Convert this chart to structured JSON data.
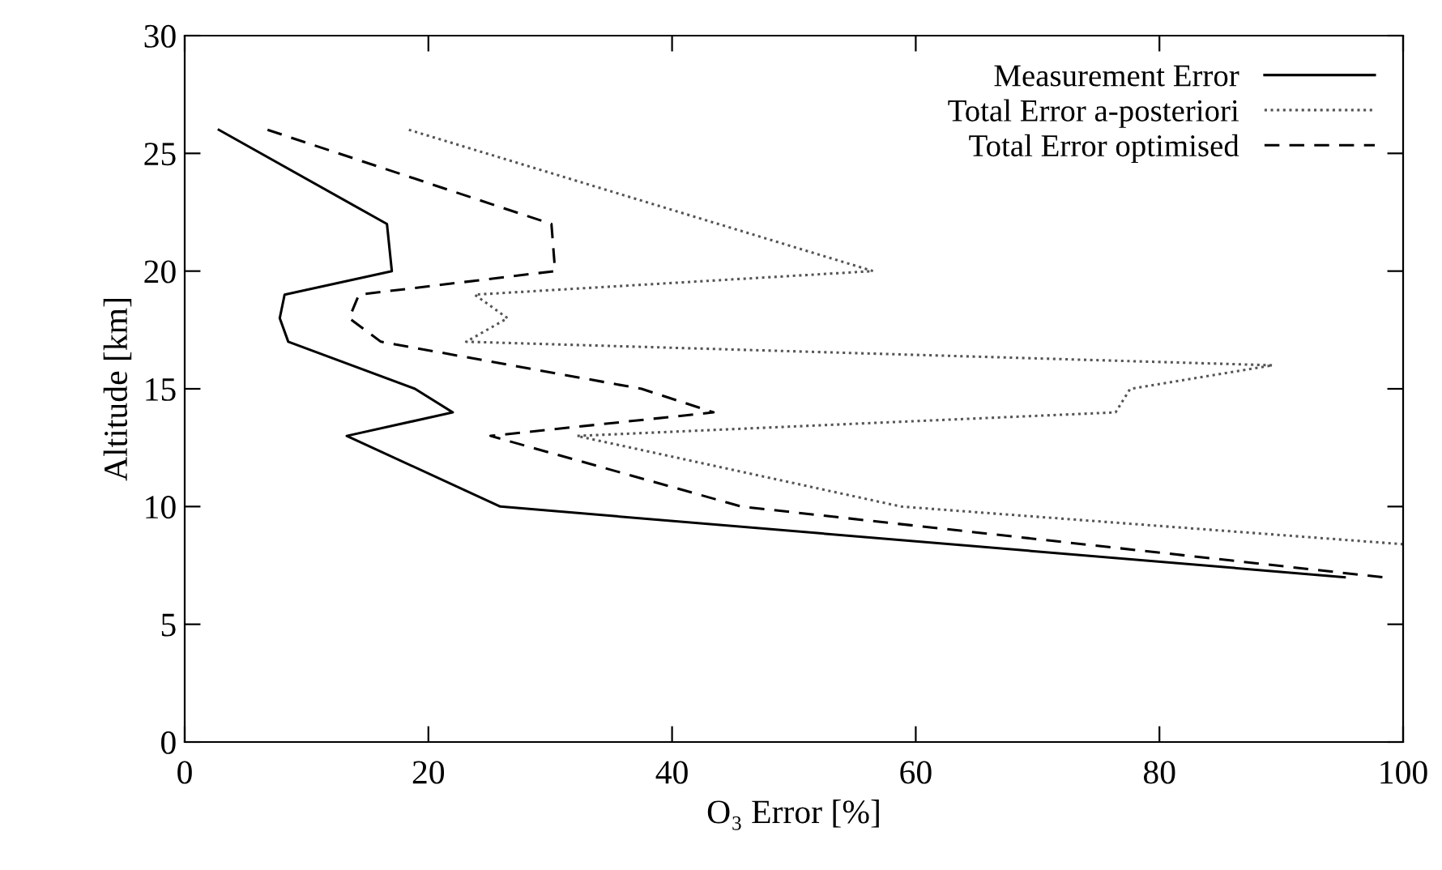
{
  "chart_data": {
    "type": "line",
    "xlabel": "O₃ Error [%]",
    "ylabel": "Altitude [km]",
    "xlim": [
      0,
      100
    ],
    "xticks": [
      0,
      20,
      40,
      60,
      80,
      100
    ],
    "ylim": [
      0,
      30
    ],
    "yticks": [
      0,
      5,
      10,
      15,
      20,
      25,
      30
    ],
    "grid": false,
    "legend": "top right",
    "marker": "none",
    "series": [
      {
        "name": "Measurement Error",
        "color": "#000000",
        "line_style": "solid",
        "x": [
          2.8,
          16.6,
          17.0,
          8.2,
          7.8,
          8.5,
          18.9,
          22.0,
          13.3,
          25.9,
          95.2
        ],
        "values": [
          26,
          22,
          20,
          19,
          18,
          17,
          15,
          14,
          13,
          10,
          7
        ]
      },
      {
        "name": "Total Error a-posteriori",
        "color": "#555555",
        "line_style": "dotted",
        "x": [
          18.4,
          56.5,
          23.8,
          26.5,
          23.1,
          89.3,
          77.6,
          76.4,
          32.2,
          58.8,
          100
        ],
        "values": [
          26,
          20,
          19,
          18,
          17,
          16,
          15,
          14,
          13,
          10,
          8.4
        ]
      },
      {
        "name": "Total Error optimised",
        "color": "#000000",
        "line_style": "dashed",
        "x": [
          6.8,
          30.1,
          30.4,
          14.3,
          13.5,
          16.1,
          37.5,
          43.4,
          25.1,
          45.7,
          98.3
        ],
        "values": [
          26,
          22,
          20,
          19,
          18,
          17,
          15,
          14,
          13,
          10,
          7
        ]
      }
    ]
  }
}
